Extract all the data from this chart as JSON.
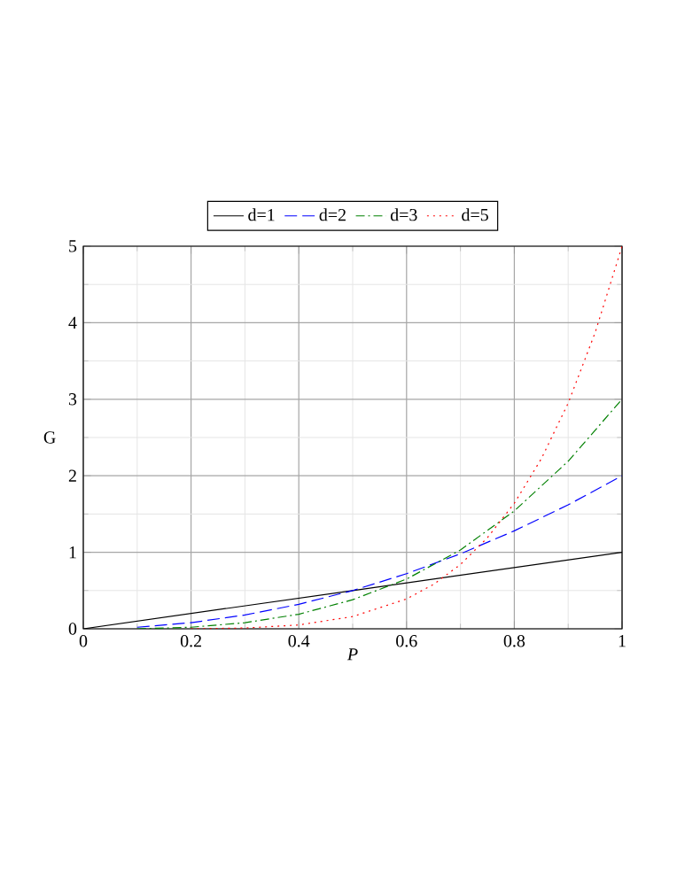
{
  "chart_data": {
    "type": "line",
    "xlabel": "P",
    "ylabel": "G",
    "xlim": [
      0,
      1
    ],
    "ylim": [
      0,
      5
    ],
    "xticks": [
      0,
      0.2,
      0.4,
      0.6,
      0.8,
      1
    ],
    "yticks": [
      0,
      1,
      2,
      3,
      4,
      5
    ],
    "grid": true,
    "legend": "top",
    "marker": "none",
    "series": [
      {
        "name": "d=1",
        "color": "#000000",
        "line_style": "solid",
        "x": [
          0,
          0.5,
          1
        ],
        "values": [
          0,
          0.5,
          1
        ]
      },
      {
        "name": "d=2",
        "color": "#0000ff",
        "line_style": "dashed",
        "x": [
          0.1,
          0.2,
          0.3,
          0.4,
          0.5,
          0.6,
          0.7,
          0.8,
          0.9,
          1
        ],
        "values": [
          0.02,
          0.08,
          0.18,
          0.32,
          0.5,
          0.72,
          0.98,
          1.28,
          1.62,
          2
        ]
      },
      {
        "name": "d=3",
        "color": "#008000",
        "line_style": "dashdot",
        "x": [
          0.1,
          0.2,
          0.3,
          0.4,
          0.5,
          0.6,
          0.7,
          0.8,
          0.9,
          1
        ],
        "values": [
          0,
          0.02,
          0.08,
          0.19,
          0.38,
          0.65,
          1.03,
          1.54,
          2.19,
          3
        ]
      },
      {
        "name": "d=5",
        "color": "#ff0000",
        "line_style": "dotted",
        "x": [
          0.2,
          0.3,
          0.4,
          0.5,
          0.6,
          0.65,
          0.7,
          0.75,
          0.8,
          0.85,
          0.9,
          0.95,
          1
        ],
        "values": [
          0,
          0.01,
          0.05,
          0.16,
          0.39,
          0.58,
          0.84,
          1.19,
          1.64,
          2.22,
          2.95,
          3.87,
          5
        ]
      }
    ]
  }
}
